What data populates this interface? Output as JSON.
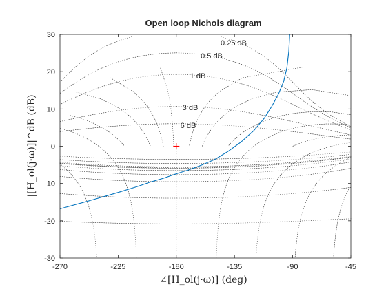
{
  "chart_data": {
    "type": "line",
    "title": "Open loop Nichols diagram",
    "xlabel": "∠[H_ol(j·ω)] (deg)",
    "ylabel": "|[H_ol(j·ω)]|^dB (dB)",
    "xlim": [
      -270,
      -45
    ],
    "ylim": [
      -30,
      30
    ],
    "xticks": [
      -270,
      -225,
      -180,
      -135,
      -90,
      -45
    ],
    "yticks": [
      -30,
      -20,
      -10,
      0,
      10,
      20,
      30
    ],
    "grid": "Nichols chart grid (constant closed-loop magnitude and phase contours)",
    "closed_loop_magnitude_labels": [
      {
        "text": "0.25 dB",
        "value_db": 0.25
      },
      {
        "text": "0.5 dB",
        "value_db": 0.5
      },
      {
        "text": "1 dB",
        "value_db": 1
      },
      {
        "text": "3 dB",
        "value_db": 3
      },
      {
        "text": "6 dB",
        "value_db": 6
      }
    ],
    "critical_point": {
      "x": -180,
      "y": 0,
      "marker": "+",
      "color": "#ff0000"
    },
    "series": [
      {
        "color": "#0072bd",
        "x": [
          -270,
          -245,
          -225,
          -210,
          -200,
          -190,
          -180,
          -170,
          -160,
          -150,
          -140,
          -130,
          -120,
          -112,
          -106,
          -101,
          -97,
          -94.5,
          -93,
          -92.3
        ],
        "y": [
          -16.8,
          -14.4,
          -12.4,
          -10.8,
          -9.6,
          -8.6,
          -7.4,
          -6.3,
          -5,
          -3.5,
          -1.4,
          1.1,
          4.2,
          7.5,
          10.8,
          14,
          17.4,
          21,
          25.5,
          30
        ]
      }
    ]
  }
}
